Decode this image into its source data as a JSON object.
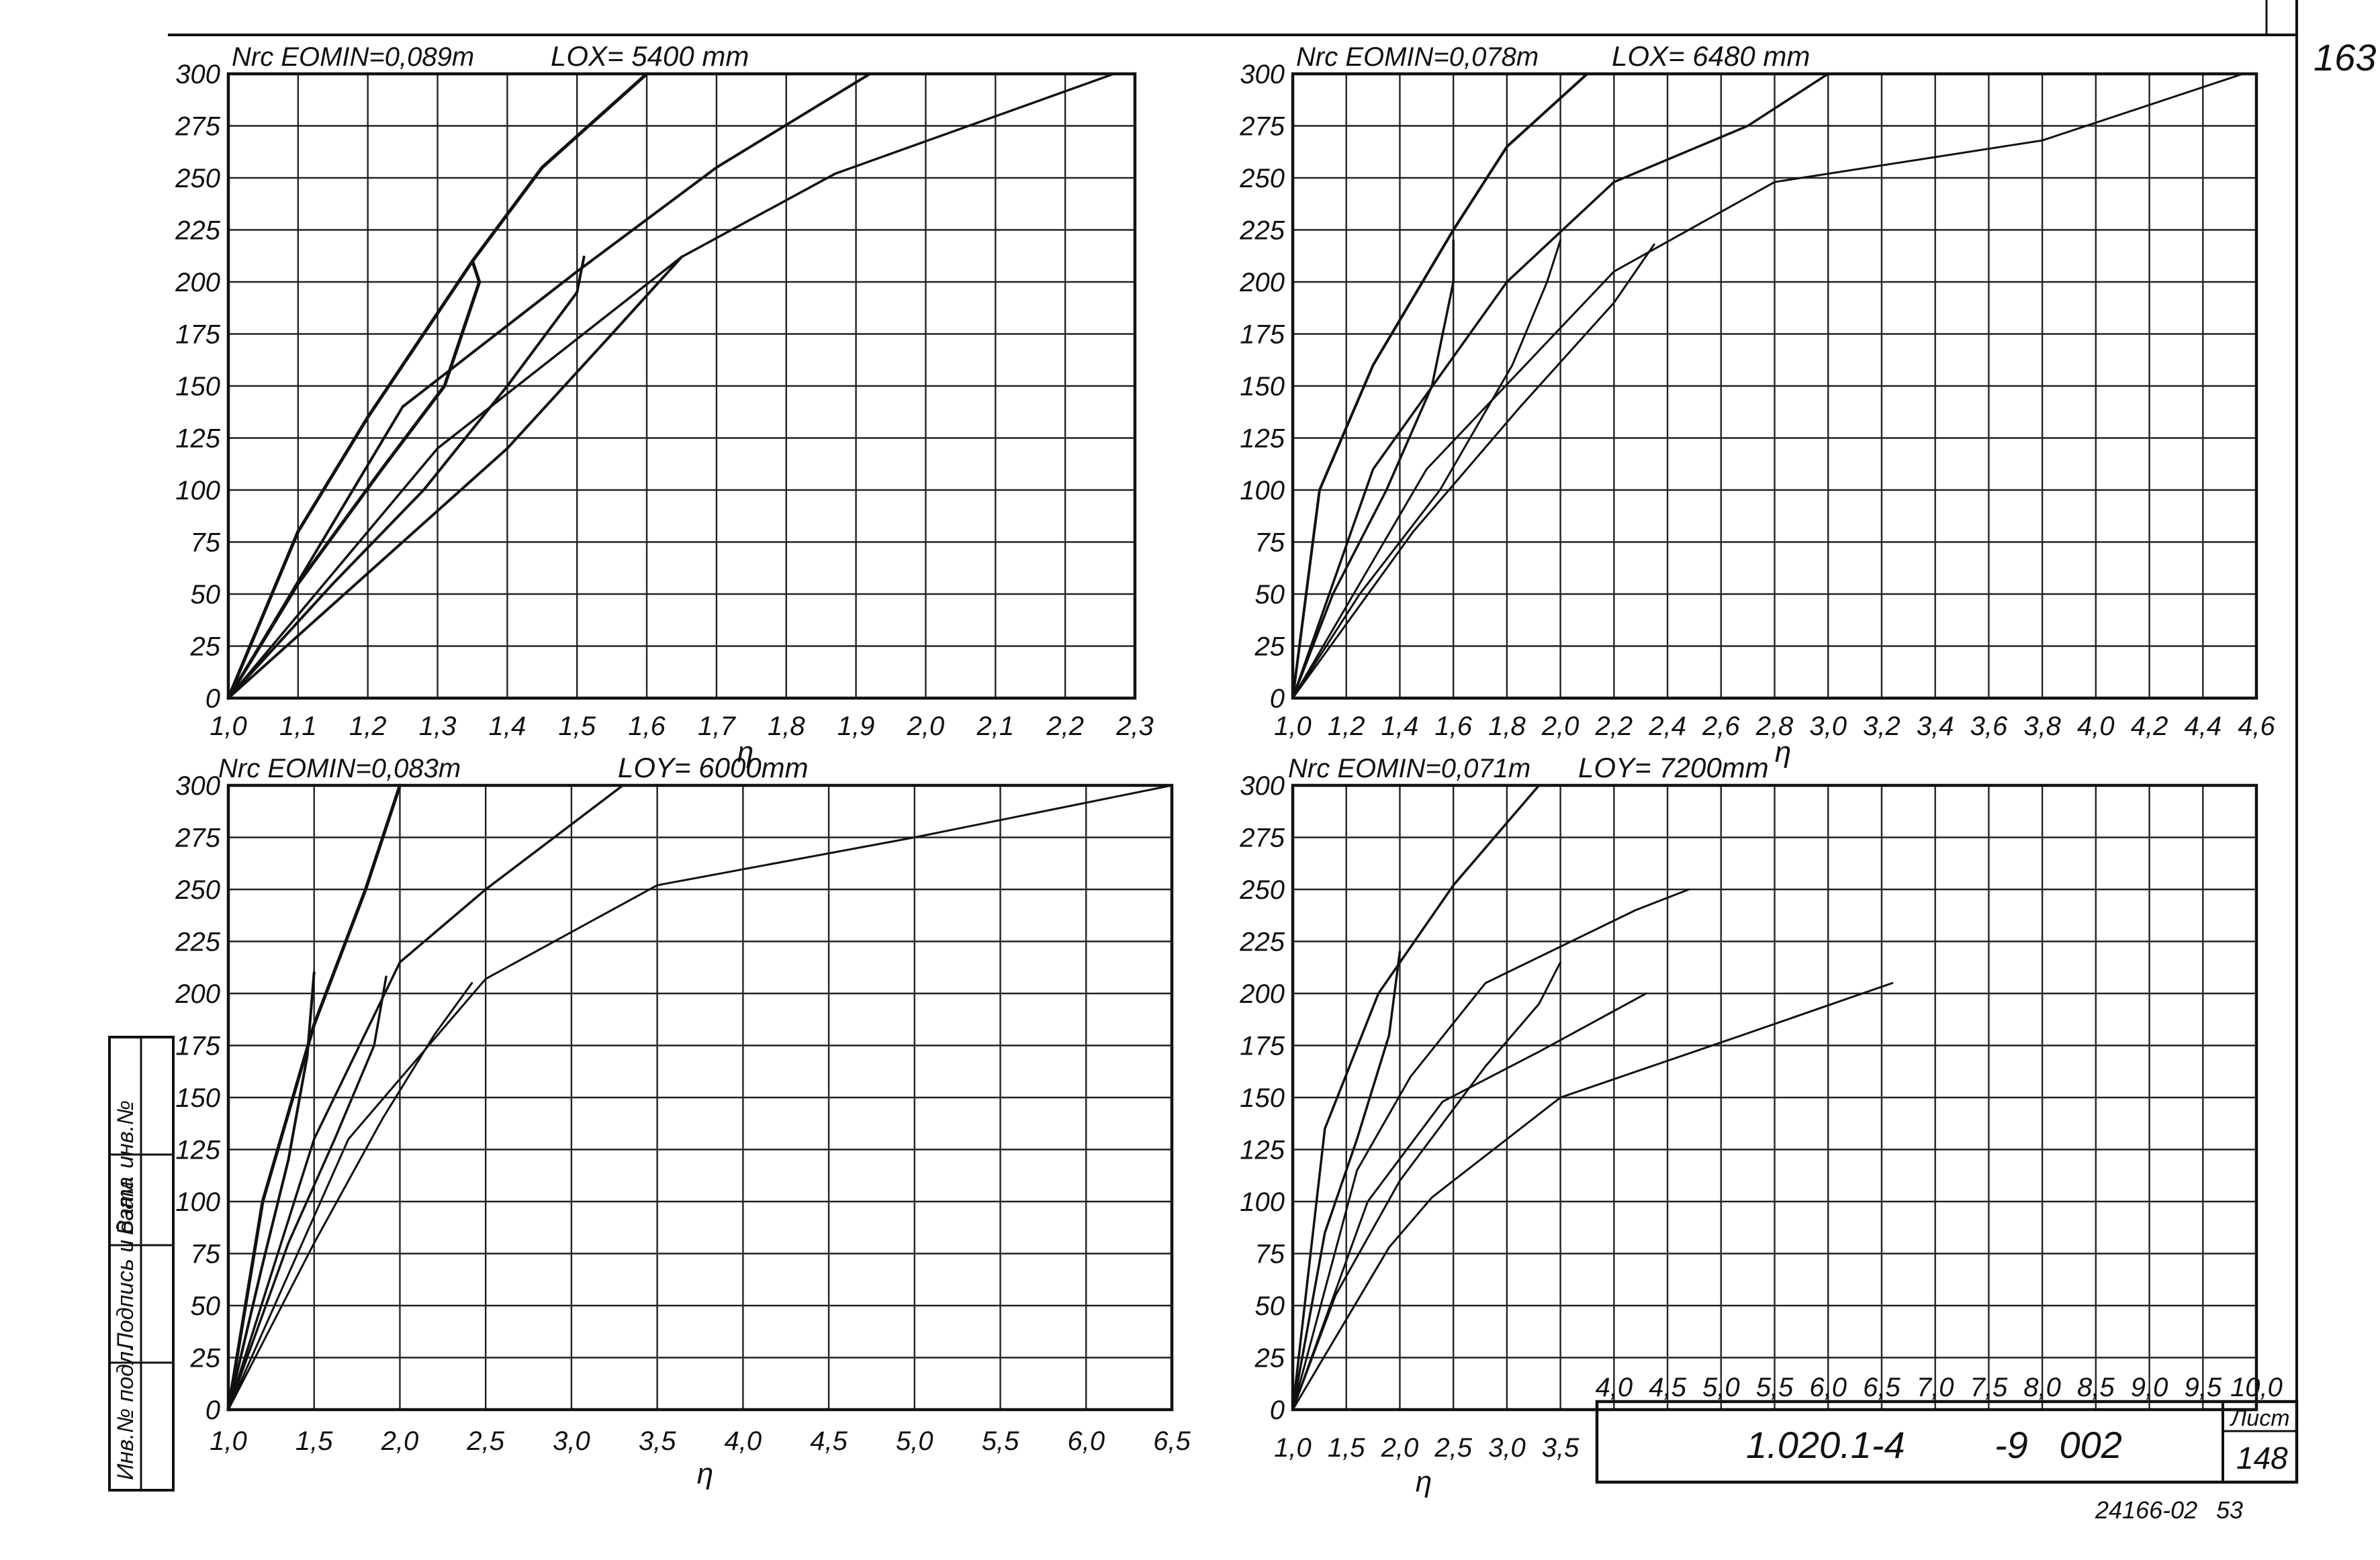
{
  "sheet": {
    "corner_number": "163",
    "code": "1.020.1-4",
    "code_suffix": "-9   002",
    "sheet_label": "Лист",
    "sheet_number": "148",
    "footer_code": "24166-02",
    "footer_number": "53",
    "stamp": [
      "Инв.№ подл.",
      "Подпись и дата",
      "Взам. инв.№"
    ]
  },
  "chart_data": [
    {
      "type": "line",
      "title": "Nrc EOMIN=0,089m",
      "subtitle": "LOX= 5400 mm",
      "xlabel": "η",
      "ylabel": "",
      "xlim": [
        1.0,
        2.3
      ],
      "ylim": [
        0,
        300
      ],
      "xticks": [
        "1,0",
        "1,1",
        "1,2",
        "1,3",
        "1,4",
        "1,5",
        "1,6",
        "1,7",
        "1,8",
        "1,9",
        "2,0",
        "2,1",
        "2,2",
        "2,3"
      ],
      "yticks": [
        "0",
        "25",
        "50",
        "75",
        "100",
        "125",
        "150",
        "175",
        "200",
        "225",
        "250",
        "275",
        "300"
      ],
      "grid": true,
      "series": [
        {
          "width": 5,
          "points": [
            [
              1.0,
              0
            ],
            [
              1.1,
              80
            ],
            [
              1.2,
              135
            ],
            [
              1.35,
              210
            ],
            [
              1.45,
              255
            ],
            [
              1.6,
              300
            ]
          ]
        },
        {
          "width": 4,
          "points": [
            [
              1.0,
              0
            ],
            [
              1.25,
              140
            ],
            [
              1.5,
              205
            ],
            [
              1.7,
              255
            ],
            [
              1.92,
              300
            ]
          ]
        },
        {
          "width": 3.5,
          "points": [
            [
              1.0,
              0
            ],
            [
              1.3,
              120
            ],
            [
              1.65,
              212
            ],
            [
              1.87,
              252
            ],
            [
              2.27,
              300
            ]
          ]
        },
        {
          "width": 5,
          "points": [
            [
              1.35,
              210
            ],
            [
              1.36,
              200
            ],
            [
              1.31,
              150
            ],
            [
              1.22,
              110
            ],
            [
              1.1,
              55
            ],
            [
              1.0,
              0
            ]
          ]
        },
        {
          "width": 4,
          "points": [
            [
              1.51,
              212
            ],
            [
              1.5,
              195
            ],
            [
              1.4,
              150
            ],
            [
              1.28,
              100
            ],
            [
              1.15,
              55
            ],
            [
              1.0,
              0
            ]
          ]
        },
        {
          "width": 4,
          "points": [
            [
              1.65,
              212
            ],
            [
              1.55,
              175
            ],
            [
              1.4,
              120
            ],
            [
              1.2,
              60
            ],
            [
              1.0,
              0
            ]
          ]
        }
      ]
    },
    {
      "type": "line",
      "title": "Nrc EOMIN=0,078m",
      "subtitle": "LOX= 6480 mm",
      "xlabel": "η",
      "ylabel": "",
      "xlim": [
        1.0,
        4.6
      ],
      "ylim": [
        0,
        300
      ],
      "xticks": [
        "1,0",
        "1,2",
        "1,4",
        "1,6",
        "1,8",
        "2,0",
        "2,2",
        "2,4",
        "2,6",
        "2,8",
        "3,0",
        "3,2",
        "3,4",
        "3,6",
        "3,8",
        "4,0",
        "4,2",
        "4,4",
        "4,6"
      ],
      "yticks": [
        "0",
        "25",
        "50",
        "75",
        "100",
        "125",
        "150",
        "175",
        "200",
        "225",
        "250",
        "275",
        "300"
      ],
      "grid": true,
      "series": [
        {
          "width": 4,
          "points": [
            [
              1.0,
              0
            ],
            [
              1.1,
              100
            ],
            [
              1.3,
              160
            ],
            [
              1.6,
              225
            ],
            [
              1.8,
              265
            ],
            [
              2.1,
              300
            ]
          ]
        },
        {
          "width": 3.5,
          "points": [
            [
              1.0,
              0
            ],
            [
              1.3,
              110
            ],
            [
              1.8,
              200
            ],
            [
              2.2,
              248
            ],
            [
              2.7,
              275
            ],
            [
              3.0,
              300
            ]
          ]
        },
        {
          "width": 3,
          "points": [
            [
              1.0,
              0
            ],
            [
              1.5,
              110
            ],
            [
              2.2,
              205
            ],
            [
              2.8,
              248
            ],
            [
              3.8,
              268
            ],
            [
              4.55,
              300
            ]
          ]
        },
        {
          "width": 3.5,
          "points": [
            [
              1.6,
              220
            ],
            [
              1.6,
              200
            ],
            [
              1.52,
              150
            ],
            [
              1.35,
              100
            ],
            [
              1.15,
              50
            ],
            [
              1.0,
              0
            ]
          ]
        },
        {
          "width": 3,
          "points": [
            [
              2.0,
              220
            ],
            [
              1.95,
              200
            ],
            [
              1.82,
              160
            ],
            [
              1.55,
              100
            ],
            [
              1.25,
              50
            ],
            [
              1.0,
              0
            ]
          ]
        },
        {
          "width": 3,
          "points": [
            [
              2.35,
              218
            ],
            [
              2.2,
              190
            ],
            [
              1.85,
              140
            ],
            [
              1.45,
              80
            ],
            [
              1.0,
              0
            ]
          ]
        }
      ]
    },
    {
      "type": "line",
      "title": "Nrc EOMIN=0,083m",
      "subtitle": "LOY= 6000mm",
      "xlabel": "η",
      "ylabel": "",
      "xlim": [
        1.0,
        6.5
      ],
      "ylim": [
        0,
        300
      ],
      "xticks": [
        "1,0",
        "1,5",
        "2,0",
        "2,5",
        "3,0",
        "3,5",
        "4,0",
        "4,5",
        "5,0",
        "5,5",
        "6,0",
        "6,5"
      ],
      "yticks": [
        "0",
        "25",
        "50",
        "75",
        "100",
        "125",
        "150",
        "175",
        "200",
        "225",
        "250",
        "275",
        "300"
      ],
      "grid": true,
      "series": [
        {
          "width": 5,
          "points": [
            [
              1.0,
              0
            ],
            [
              1.2,
              100
            ],
            [
              1.5,
              185
            ],
            [
              1.8,
              250
            ],
            [
              2.0,
              300
            ]
          ]
        },
        {
          "width": 3.5,
          "points": [
            [
              1.0,
              0
            ],
            [
              1.5,
              130
            ],
            [
              2.0,
              215
            ],
            [
              2.5,
              250
            ],
            [
              3.3,
              300
            ]
          ]
        },
        {
          "width": 3,
          "points": [
            [
              1.0,
              0
            ],
            [
              1.7,
              130
            ],
            [
              2.5,
              207
            ],
            [
              3.5,
              252
            ],
            [
              5.0,
              275
            ],
            [
              6.5,
              300
            ]
          ]
        },
        {
          "width": 4,
          "points": [
            [
              1.5,
              210
            ],
            [
              1.46,
              170
            ],
            [
              1.35,
              120
            ],
            [
              1.2,
              70
            ],
            [
              1.0,
              0
            ]
          ]
        },
        {
          "width": 3.5,
          "points": [
            [
              1.92,
              208
            ],
            [
              1.85,
              175
            ],
            [
              1.62,
              130
            ],
            [
              1.35,
              80
            ],
            [
              1.0,
              0
            ]
          ]
        },
        {
          "width": 3,
          "points": [
            [
              2.42,
              205
            ],
            [
              2.2,
              180
            ],
            [
              1.9,
              140
            ],
            [
              1.5,
              80
            ],
            [
              1.0,
              0
            ]
          ]
        }
      ]
    },
    {
      "type": "line",
      "title": "Nrc EOMIN=0,071m",
      "subtitle": "LOY= 7200mm",
      "xlabel": "η",
      "ylabel": "",
      "xlim": [
        1.0,
        10.0
      ],
      "ylim": [
        0,
        300
      ],
      "xticks": [
        "1,0",
        "1,5",
        "2,0",
        "2,5",
        "3,0",
        "3,5",
        "4,0",
        "4,5",
        "5,0",
        "5,5",
        "6,0",
        "6,5",
        "7,0",
        "7,5",
        "8,0",
        "8,5",
        "9,0",
        "9,5",
        "10,0"
      ],
      "yticks": [
        "0",
        "25",
        "50",
        "75",
        "100",
        "125",
        "150",
        "175",
        "200",
        "225",
        "250",
        "275",
        "300"
      ],
      "grid": true,
      "series": [
        {
          "width": 3.5,
          "points": [
            [
              1.0,
              0
            ],
            [
              1.3,
              135
            ],
            [
              1.8,
              200
            ],
            [
              2.5,
              252
            ],
            [
              3.3,
              300
            ]
          ]
        },
        {
          "width": 3,
          "points": [
            [
              1.0,
              0
            ],
            [
              1.6,
              115
            ],
            [
              2.1,
              160
            ],
            [
              2.8,
              205
            ],
            [
              4.2,
              240
            ],
            [
              4.7,
              250
            ]
          ]
        },
        {
          "width": 3,
          "points": [
            [
              1.0,
              0
            ],
            [
              1.7,
              100
            ],
            [
              2.4,
              148
            ],
            [
              3.3,
              172
            ],
            [
              4.3,
              200
            ]
          ]
        },
        {
          "width": 3,
          "points": [
            [
              1.0,
              0
            ],
            [
              1.9,
              78
            ],
            [
              2.3,
              102
            ],
            [
              3.5,
              150
            ],
            [
              5.2,
              180
            ],
            [
              6.6,
              205
            ]
          ]
        },
        {
          "width": 3.5,
          "points": [
            [
              2.0,
              220
            ],
            [
              1.9,
              180
            ],
            [
              1.6,
              130
            ],
            [
              1.3,
              85
            ],
            [
              1.0,
              0
            ]
          ]
        },
        {
          "width": 3,
          "points": [
            [
              3.5,
              215
            ],
            [
              3.3,
              195
            ],
            [
              2.8,
              165
            ],
            [
              2.0,
              110
            ],
            [
              1.4,
              55
            ],
            [
              1.0,
              0
            ]
          ]
        }
      ]
    }
  ]
}
